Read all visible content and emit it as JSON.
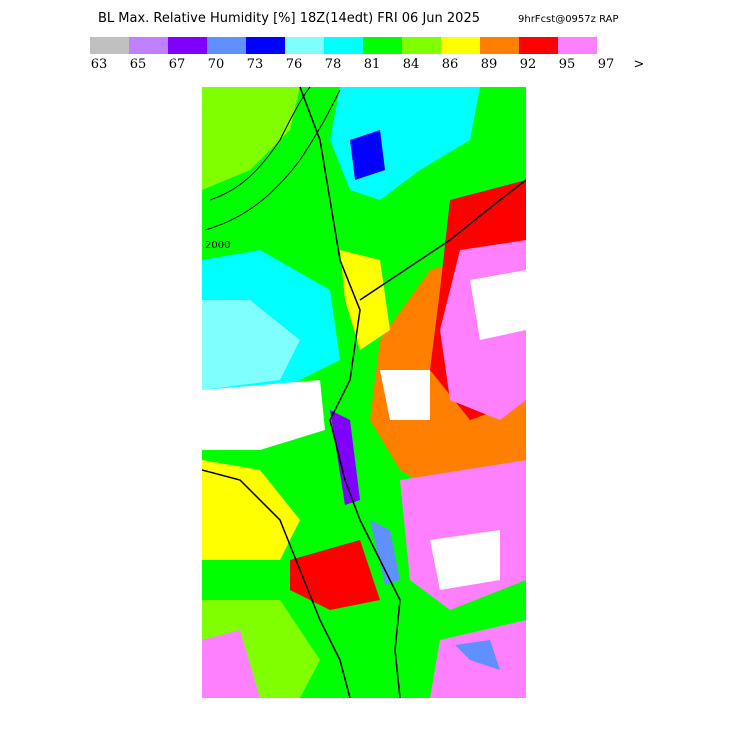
{
  "header": {
    "title": "BL Max. Relative Humidity [%] 18Z(14edt) FRI 06 Jun 2025",
    "forecast": "9hrFcst@0957z RAP"
  },
  "colorbar": {
    "colors": [
      "#c0c0c0",
      "#c080ff",
      "#8000ff",
      "#6090ff",
      "#0000ff",
      "#80ffff",
      "#00ffff",
      "#00ff00",
      "#80ff00",
      "#ffff00",
      "#ff8000",
      "#ff0000",
      "#ff80ff"
    ],
    "labels": [
      "63",
      "65",
      "67",
      "70",
      "73",
      "76",
      "78",
      "81",
      "84",
      "86",
      "89",
      "92",
      "95",
      "97",
      ">"
    ]
  },
  "map": {
    "contour_label": "2000"
  }
}
